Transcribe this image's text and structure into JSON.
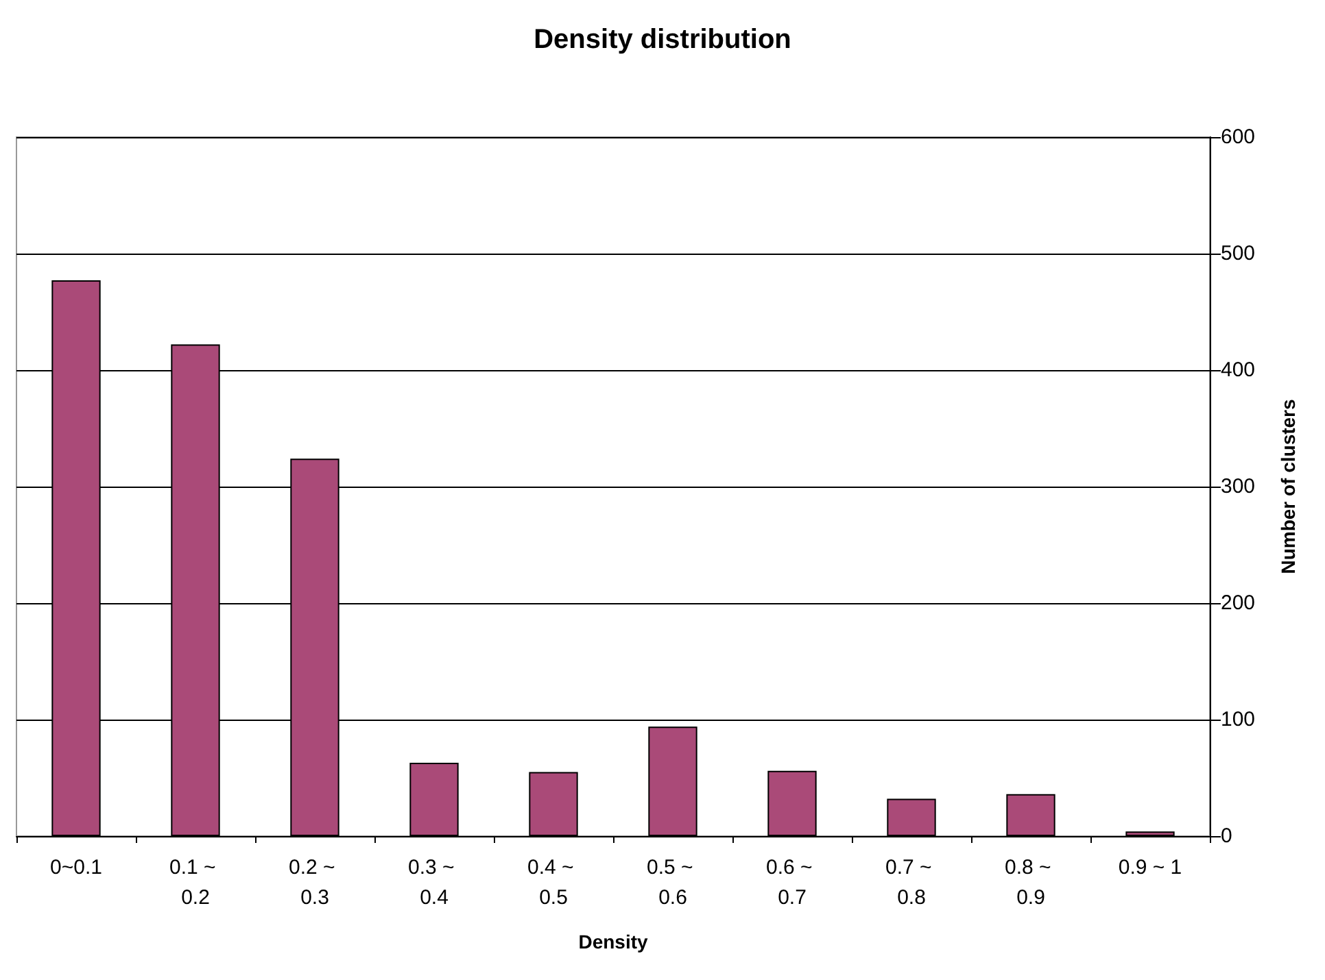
{
  "chart_data": {
    "type": "bar",
    "title": "Density distribution",
    "xlabel": "Density",
    "ylabel": "Number of clusters",
    "categories": [
      "0~0.1",
      "0.1 ~ 0.2",
      "0.2 ~ 0.3",
      "0.3 ~ 0.4",
      "0.4 ~ 0.5",
      "0.5 ~ 0.6",
      "0.6 ~ 0.7",
      "0.7 ~ 0.8",
      "0.8 ~ 0.9",
      "0.9 ~ 1"
    ],
    "values": [
      477,
      422,
      324,
      63,
      55,
      94,
      56,
      32,
      36,
      4
    ],
    "color": "#aa4a78",
    "ylim": [
      0,
      600
    ],
    "yticks": [
      0,
      100,
      200,
      300,
      400,
      500,
      600
    ],
    "grid": "y"
  }
}
